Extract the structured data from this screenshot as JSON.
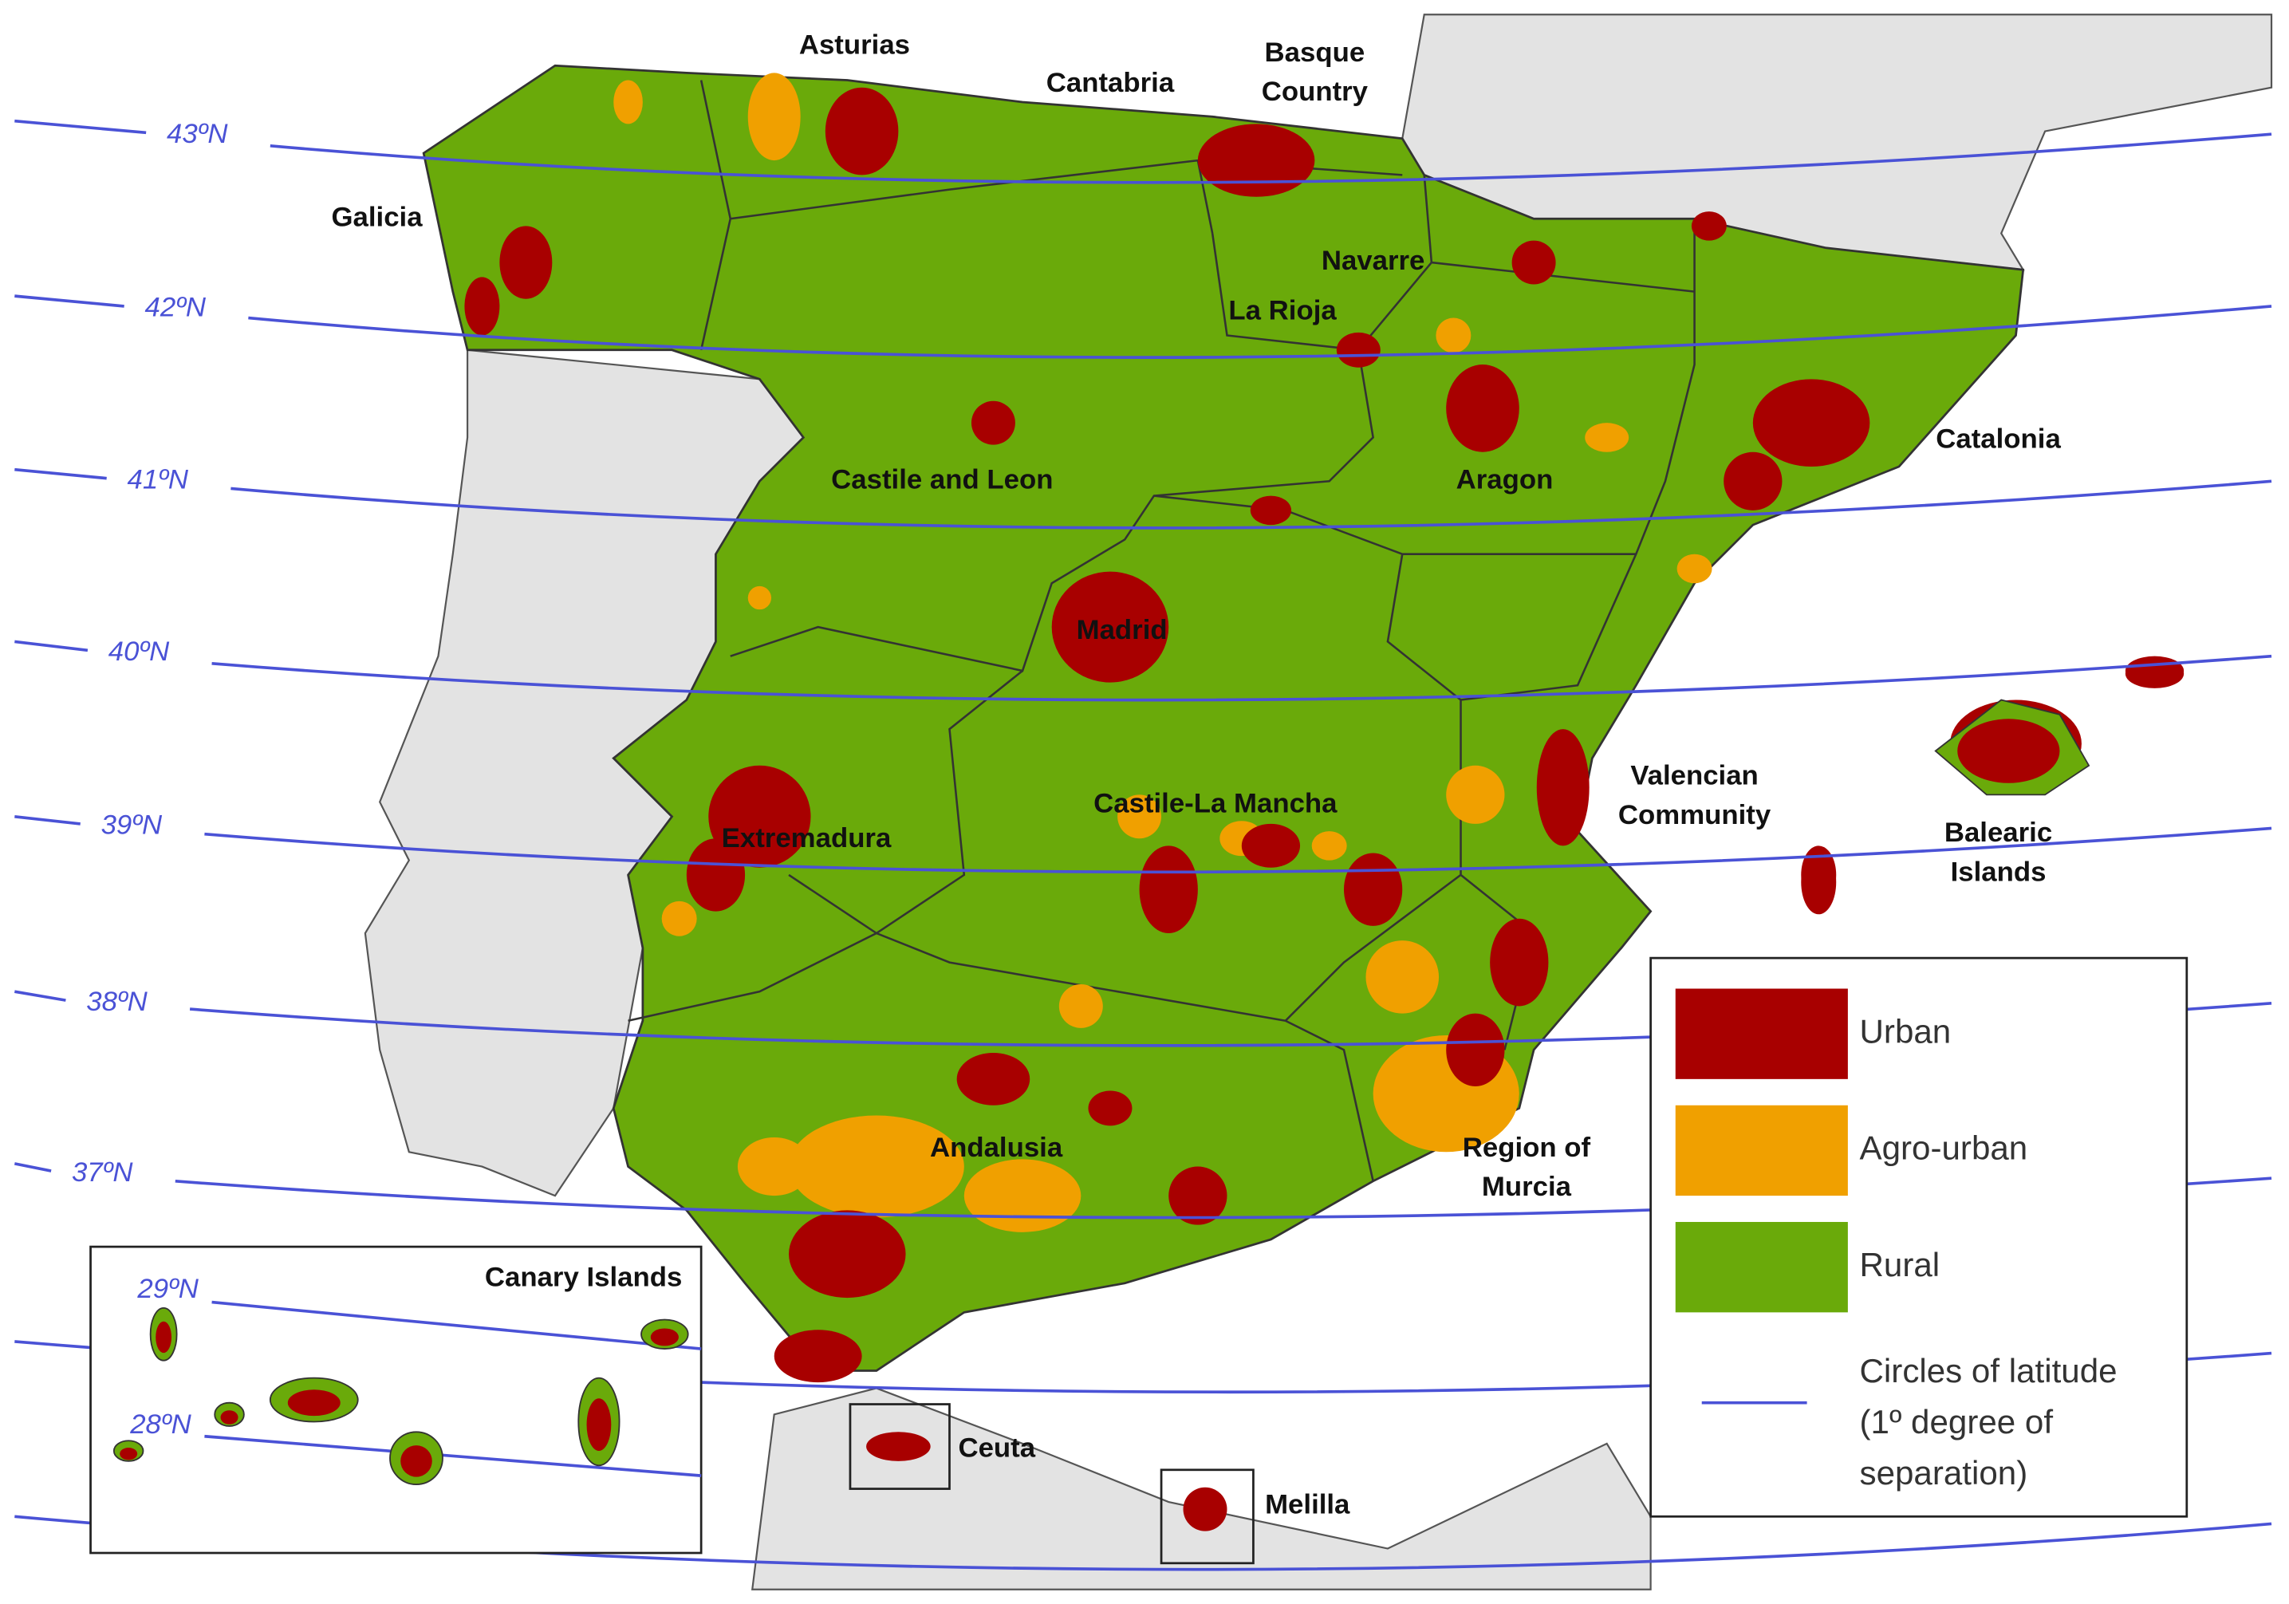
{
  "regions": [
    {
      "lines": [
        "Asturias"
      ]
    },
    {
      "lines": [
        "Cantabria"
      ]
    },
    {
      "lines": [
        "Basque",
        "Country"
      ]
    },
    {
      "lines": [
        "Galicia"
      ]
    },
    {
      "lines": [
        "Navarre"
      ]
    },
    {
      "lines": [
        "La Rioja"
      ]
    },
    {
      "lines": [
        "Castile and Leon"
      ]
    },
    {
      "lines": [
        "Aragon"
      ]
    },
    {
      "lines": [
        "Catalonia"
      ]
    },
    {
      "lines": [
        "Madrid"
      ]
    },
    {
      "lines": [
        "Valencian",
        "Community"
      ]
    },
    {
      "lines": [
        "Castile-La Mancha"
      ]
    },
    {
      "lines": [
        "Extremadura"
      ]
    },
    {
      "lines": [
        "Balearic",
        "Islands"
      ]
    },
    {
      "lines": [
        "Andalusia"
      ]
    },
    {
      "lines": [
        "Region of",
        "Murcia"
      ]
    },
    {
      "lines": [
        "Ceuta"
      ]
    },
    {
      "lines": [
        "Melilla"
      ]
    }
  ],
  "latitudes": [
    "43ºN",
    "42ºN",
    "41ºN",
    "40ºN",
    "39ºN",
    "38ºN",
    "37ºN"
  ],
  "inset": {
    "title": "Canary Islands",
    "latitudes": [
      "29ºN",
      "28ºN"
    ]
  },
  "legend": {
    "items": [
      {
        "lines": [
          "Urban"
        ],
        "color": "#a80000"
      },
      {
        "lines": [
          "Agro-urban"
        ],
        "color": "#f0a000"
      },
      {
        "lines": [
          "Rural"
        ],
        "color": "#6aaa0a"
      },
      {
        "lines": [
          "Circles of latitude",
          "(1º degree of",
          "separation)"
        ],
        "color": "#4a52d6"
      }
    ]
  }
}
